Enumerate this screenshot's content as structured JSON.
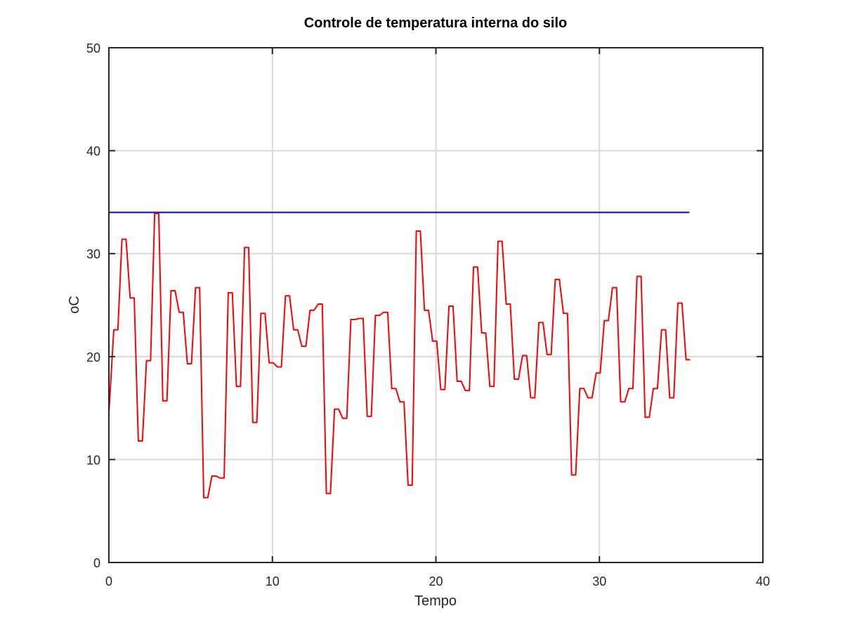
{
  "chart_data": {
    "type": "line",
    "title": "Controle de temperatura interna do silo",
    "xlabel": "Tempo",
    "ylabel": "oC",
    "xlim": [
      0,
      40
    ],
    "ylim": [
      0,
      50
    ],
    "xticks": [
      0,
      10,
      20,
      30,
      40
    ],
    "yticks": [
      0,
      10,
      20,
      30,
      40,
      50
    ],
    "grid": true,
    "series": [
      {
        "color": "#0000cc",
        "x": [
          0,
          35.5
        ],
        "y": [
          34,
          34
        ]
      },
      {
        "color": "#ff0000",
        "x": [
          0,
          0.3,
          0.55,
          0.8,
          1.05,
          1.3,
          1.55,
          1.8,
          2.05,
          2.3,
          2.55,
          2.8,
          3.05,
          3.3,
          3.55,
          3.8,
          4.05,
          4.3,
          4.55,
          4.8,
          5.05,
          5.3,
          5.55,
          5.8,
          6.05,
          6.3,
          6.55,
          6.8,
          7.05,
          7.3,
          7.55,
          7.8,
          8.05,
          8.3,
          8.55,
          8.8,
          9.05,
          9.3,
          9.55,
          9.8,
          10.05,
          10.3,
          10.55,
          10.8,
          11.05,
          11.3,
          11.55,
          11.8,
          12.05,
          12.3,
          12.55,
          12.8,
          13.05,
          13.3,
          13.55,
          13.8,
          14.05,
          14.3,
          14.55,
          14.8,
          15.05,
          15.3,
          15.55,
          15.8,
          16.05,
          16.3,
          16.55,
          16.8,
          17.05,
          17.3,
          17.55,
          17.8,
          18.05,
          18.3,
          18.55,
          18.8,
          19.05,
          19.3,
          19.55,
          19.8,
          20.05,
          20.3,
          20.55,
          20.8,
          21.05,
          21.3,
          21.55,
          21.8,
          22.05,
          22.3,
          22.55,
          22.8,
          23.05,
          23.3,
          23.55,
          23.8,
          24.05,
          24.3,
          24.55,
          24.8,
          25.05,
          25.3,
          25.55,
          25.8,
          26.05,
          26.3,
          26.55,
          26.8,
          27.05,
          27.3,
          27.55,
          27.8,
          28.05,
          28.3,
          28.55,
          28.8,
          29.05,
          29.3,
          29.55,
          29.8,
          30.05,
          30.3,
          30.55,
          30.8,
          31.05,
          31.3,
          31.55,
          31.8,
          32.05,
          32.3,
          32.55,
          32.8,
          33.05,
          33.3,
          33.55,
          33.8,
          34.05,
          34.3,
          34.55,
          34.8,
          35.05,
          35.3,
          35.55
        ],
        "y": [
          14.5,
          22.6,
          22.6,
          31.4,
          31.4,
          25.7,
          25.7,
          11.8,
          11.8,
          19.6,
          19.6,
          33.9,
          33.9,
          15.7,
          15.7,
          26.4,
          26.4,
          24.3,
          24.3,
          19.3,
          19.3,
          26.7,
          26.7,
          6.3,
          6.3,
          8.4,
          8.4,
          8.2,
          8.2,
          26.2,
          26.2,
          17.1,
          17.1,
          30.6,
          30.6,
          13.6,
          13.6,
          24.2,
          24.2,
          19.4,
          19.4,
          19.0,
          19.0,
          25.9,
          25.9,
          22.6,
          22.6,
          21.0,
          21.0,
          24.5,
          24.5,
          25.1,
          25.1,
          6.7,
          6.7,
          14.9,
          14.9,
          14.0,
          14.0,
          23.6,
          23.6,
          23.7,
          23.7,
          14.2,
          14.2,
          24.0,
          24.0,
          24.3,
          24.3,
          16.9,
          16.9,
          15.6,
          15.6,
          7.5,
          7.5,
          32.2,
          32.2,
          24.5,
          24.5,
          21.5,
          21.5,
          16.8,
          16.8,
          24.9,
          24.9,
          17.6,
          17.6,
          16.7,
          16.7,
          28.7,
          28.7,
          22.3,
          22.3,
          17.1,
          17.1,
          31.2,
          31.2,
          25.1,
          25.1,
          17.8,
          17.8,
          20.1,
          20.1,
          16.0,
          16.0,
          23.3,
          23.3,
          20.2,
          20.2,
          27.5,
          27.5,
          24.2,
          24.2,
          8.5,
          8.5,
          16.9,
          16.9,
          16.0,
          16.0,
          18.4,
          18.4,
          23.5,
          23.5,
          26.7,
          26.7,
          15.6,
          15.6,
          16.9,
          16.9,
          27.8,
          27.8,
          14.1,
          14.1,
          16.9,
          16.9,
          22.6,
          22.6,
          16.0,
          16.0,
          25.2,
          25.2,
          19.7,
          19.7
        ]
      }
    ]
  }
}
